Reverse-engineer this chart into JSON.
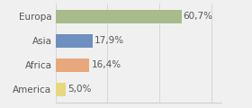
{
  "categories": [
    "Europa",
    "Asia",
    "Africa",
    "America"
  ],
  "values": [
    60.7,
    17.9,
    16.4,
    5.0
  ],
  "labels": [
    "60,7%",
    "17,9%",
    "16,4%",
    "5,0%"
  ],
  "bar_colors": [
    "#a8bb8a",
    "#6e8fbf",
    "#e8a87c",
    "#e8d87c"
  ],
  "background_color": "#f0f0f0",
  "xlim": [
    0,
    80
  ],
  "bar_height": 0.55,
  "label_fontsize": 7.5,
  "tick_fontsize": 7.5
}
